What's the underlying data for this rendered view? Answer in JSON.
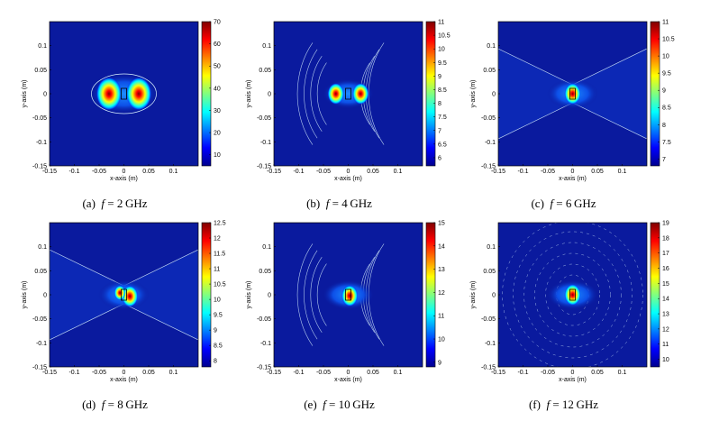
{
  "chart_data": [
    {
      "type": "heatmap",
      "panel": "(a)",
      "caption_label": "(a)",
      "caption_var": "f",
      "caption_eq": "=",
      "caption_value": "2",
      "caption_unit": "GHz",
      "xlabel": "x-axis (m)",
      "ylabel": "y-axis (m)",
      "xlim": [
        -0.15,
        0.15
      ],
      "ylim": [
        -0.15,
        0.15
      ],
      "x_ticks": [
        "-0.15",
        "-0.1",
        "-0.05",
        "0",
        "0.05",
        "0.1"
      ],
      "y_ticks": [
        "-0.15",
        "-0.1",
        "-0.05",
        "0",
        "0.05",
        "0.1"
      ],
      "colorbar_range": [
        5,
        70
      ],
      "colorbar_ticks": [
        "70",
        "60",
        "50",
        "40",
        "30",
        "20",
        "10"
      ],
      "hotspots": [
        {
          "x": -0.03,
          "y": 0.0,
          "level": 1.0
        },
        {
          "x": 0.03,
          "y": 0.0,
          "level": 1.0
        }
      ],
      "pattern": "single"
    },
    {
      "type": "heatmap",
      "panel": "(b)",
      "caption_label": "(b)",
      "caption_var": "f",
      "caption_eq": "=",
      "caption_value": "4",
      "caption_unit": "GHz",
      "xlabel": "x-axis (m)",
      "ylabel": "y-axis (m)",
      "xlim": [
        -0.15,
        0.15
      ],
      "ylim": [
        -0.15,
        0.15
      ],
      "x_ticks": [
        "-0.15",
        "-0.1",
        "-0.05",
        "0",
        "0.05",
        "0.1"
      ],
      "y_ticks": [
        "-0.15",
        "-0.1",
        "-0.05",
        "0",
        "0.05",
        "0.1"
      ],
      "colorbar_range": [
        5.7,
        11
      ],
      "colorbar_ticks": [
        "11",
        "10.5",
        "10",
        "9.5",
        "9",
        "8.5",
        "8",
        "7.5",
        "7",
        "6.5",
        "6"
      ],
      "hotspots": [
        {
          "x": -0.025,
          "y": 0.0,
          "level": 1.0
        },
        {
          "x": 0.025,
          "y": 0.0,
          "level": 1.0
        }
      ],
      "pattern": "arcs"
    },
    {
      "type": "heatmap",
      "panel": "(c)",
      "caption_label": "(c)",
      "caption_var": "f",
      "caption_eq": "=",
      "caption_value": "6",
      "caption_unit": "GHz",
      "xlabel": "x-axis (m)",
      "ylabel": "y-axis (m)",
      "xlim": [
        -0.15,
        0.15
      ],
      "ylim": [
        -0.15,
        0.15
      ],
      "x_ticks": [
        "-0.15",
        "-0.1",
        "-0.05",
        "0",
        "0.05",
        "0.1"
      ],
      "y_ticks": [
        "-0.15",
        "-0.1",
        "-0.05",
        "0",
        "0.05",
        "0.1"
      ],
      "colorbar_range": [
        6.8,
        11
      ],
      "colorbar_ticks": [
        "11",
        "10.5",
        "10",
        "9.5",
        "9",
        "8.5",
        "8",
        "7.5",
        "7"
      ],
      "hotspots": [
        {
          "x": 0.0,
          "y": 0.0,
          "level": 1.0
        }
      ],
      "pattern": "bowtie"
    },
    {
      "type": "heatmap",
      "panel": "(d)",
      "caption_label": "(d)",
      "caption_var": "f",
      "caption_eq": "=",
      "caption_value": "8",
      "caption_unit": "GHz",
      "xlabel": "x-axis (m)",
      "ylabel": "y-axis (m)",
      "xlim": [
        -0.15,
        0.15
      ],
      "ylim": [
        -0.15,
        0.15
      ],
      "x_ticks": [
        "-0.15",
        "-0.1",
        "-0.05",
        "0",
        "0.05",
        "0.1"
      ],
      "y_ticks": [
        "-0.15",
        "-0.1",
        "-0.05",
        "0",
        "0.05",
        "0.1"
      ],
      "colorbar_range": [
        7.8,
        12.5
      ],
      "colorbar_ticks": [
        "12.5",
        "12",
        "11.5",
        "11",
        "10.5",
        "10",
        "9.5",
        "9",
        "8.5",
        "8"
      ],
      "hotspots": [
        {
          "x": 0.012,
          "y": -0.003,
          "level": 1.0
        },
        {
          "x": -0.008,
          "y": 0.004,
          "level": 0.7
        }
      ],
      "pattern": "bowtie"
    },
    {
      "type": "heatmap",
      "panel": "(e)",
      "caption_label": "(e)",
      "caption_var": "f",
      "caption_eq": "=",
      "caption_value": "10",
      "caption_unit": "GHz",
      "xlabel": "x-axis (m)",
      "ylabel": "y-axis (m)",
      "xlim": [
        -0.15,
        0.15
      ],
      "ylim": [
        -0.15,
        0.15
      ],
      "x_ticks": [
        "-0.15",
        "-0.1",
        "-0.05",
        "0",
        "0.05",
        "0.1"
      ],
      "y_ticks": [
        "-0.15",
        "-0.1",
        "-0.05",
        "0",
        "0.05",
        "0.1"
      ],
      "colorbar_range": [
        8.8,
        15
      ],
      "colorbar_ticks": [
        "15",
        "14",
        "13",
        "12",
        "11",
        "10",
        "9"
      ],
      "hotspots": [
        {
          "x": 0.003,
          "y": -0.002,
          "level": 1.0
        }
      ],
      "pattern": "arcs"
    },
    {
      "type": "heatmap",
      "panel": "(f)",
      "caption_label": "(f)",
      "caption_var": "f",
      "caption_eq": "=",
      "caption_value": "12",
      "caption_unit": "GHz",
      "xlabel": "x-axis (m)",
      "ylabel": "y-axis (m)",
      "xlim": [
        -0.15,
        0.15
      ],
      "ylim": [
        -0.15,
        0.15
      ],
      "x_ticks": [
        "-0.15",
        "-0.1",
        "-0.05",
        "0",
        "0.05",
        "0.1"
      ],
      "y_ticks": [
        "-0.15",
        "-0.1",
        "-0.05",
        "0",
        "0.05",
        "0.1"
      ],
      "colorbar_range": [
        9.5,
        19
      ],
      "colorbar_ticks": [
        "19",
        "18",
        "17",
        "16",
        "15",
        "14",
        "13",
        "12",
        "11",
        "10"
      ],
      "hotspots": [
        {
          "x": 0.0,
          "y": 0.0,
          "level": 1.0
        }
      ],
      "pattern": "rings"
    }
  ],
  "colormap": [
    "#00008f",
    "#0000ff",
    "#0080ff",
    "#00ffff",
    "#80ff80",
    "#ffff00",
    "#ff8000",
    "#ff0000",
    "#800000"
  ],
  "background_color": "#0a1a9e",
  "contour_color": "#d9f2ff"
}
